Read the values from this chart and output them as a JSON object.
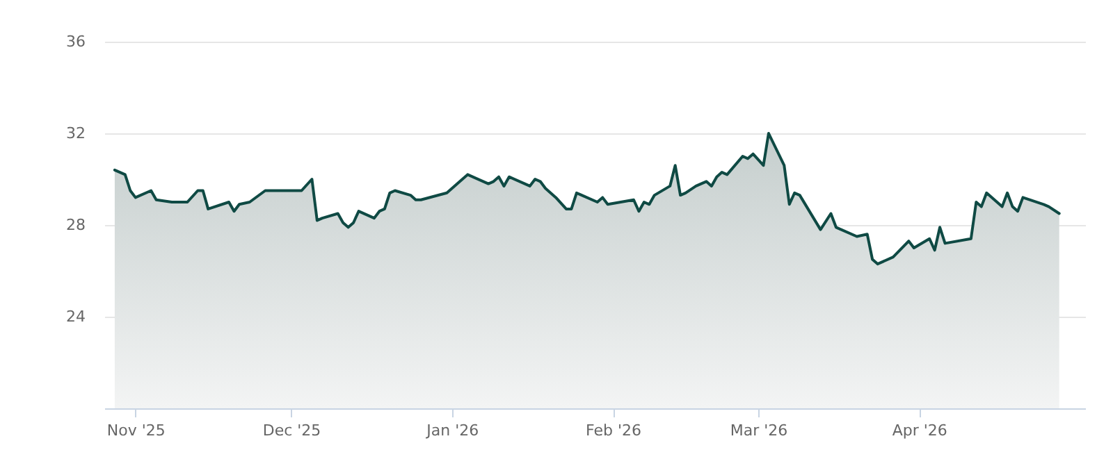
{
  "chart_data": {
    "type": "area",
    "x": [
      "2025-10-28",
      "2025-10-30",
      "2025-10-31",
      "2025-11-01",
      "2025-11-04",
      "2025-11-05",
      "2025-11-08",
      "2025-11-11",
      "2025-11-13",
      "2025-11-14",
      "2025-11-15",
      "2025-11-19",
      "2025-11-20",
      "2025-11-21",
      "2025-11-23",
      "2025-11-26",
      "2025-11-27",
      "2025-11-28",
      "2025-12-03",
      "2025-12-05",
      "2025-12-06",
      "2025-12-07",
      "2025-12-10",
      "2025-12-11",
      "2025-12-12",
      "2025-12-13",
      "2025-12-14",
      "2025-12-17",
      "2025-12-18",
      "2025-12-19",
      "2025-12-20",
      "2025-12-21",
      "2025-12-24",
      "2025-12-25",
      "2025-12-26",
      "2025-12-31",
      "2026-01-04",
      "2026-01-08",
      "2026-01-09",
      "2026-01-10",
      "2026-01-11",
      "2026-01-12",
      "2026-01-16",
      "2026-01-17",
      "2026-01-18",
      "2026-01-19",
      "2026-01-21",
      "2026-01-23",
      "2026-01-24",
      "2026-01-25",
      "2026-01-26",
      "2026-01-29",
      "2026-01-30",
      "2026-01-31",
      "2026-02-05",
      "2026-02-06",
      "2026-02-07",
      "2026-02-08",
      "2026-02-09",
      "2026-02-12",
      "2026-02-13",
      "2026-02-14",
      "2026-02-15",
      "2026-02-17",
      "2026-02-19",
      "2026-02-20",
      "2026-02-21",
      "2026-02-22",
      "2026-02-23",
      "2026-02-26",
      "2026-02-27",
      "2026-02-28",
      "2026-03-02",
      "2026-03-03",
      "2026-03-06",
      "2026-03-07",
      "2026-03-08",
      "2026-03-09",
      "2026-03-13",
      "2026-03-15",
      "2026-03-16",
      "2026-03-20",
      "2026-03-22",
      "2026-03-23",
      "2026-03-24",
      "2026-03-27",
      "2026-03-30",
      "2026-03-31",
      "2026-04-03",
      "2026-04-04",
      "2026-04-05",
      "2026-04-06",
      "2026-04-11",
      "2026-04-12",
      "2026-04-13",
      "2026-04-14",
      "2026-04-17",
      "2026-04-18",
      "2026-04-19",
      "2026-04-20",
      "2026-04-21",
      "2026-04-25",
      "2026-04-26",
      "2026-04-28"
    ],
    "values": [
      30.4,
      30.2,
      29.5,
      29.2,
      29.5,
      29.1,
      29.0,
      29.0,
      29.5,
      29.5,
      28.7,
      29.0,
      28.6,
      28.9,
      29.0,
      29.5,
      29.5,
      29.5,
      29.5,
      30.0,
      28.2,
      28.3,
      28.5,
      28.1,
      27.9,
      28.1,
      28.6,
      28.3,
      28.6,
      28.7,
      29.4,
      29.5,
      29.3,
      29.1,
      29.1,
      29.4,
      30.2,
      29.8,
      29.9,
      30.1,
      29.7,
      30.1,
      29.7,
      30.0,
      29.9,
      29.6,
      29.2,
      28.7,
      28.7,
      29.4,
      29.3,
      29.0,
      29.2,
      28.9,
      29.1,
      28.6,
      29.0,
      28.9,
      29.3,
      29.7,
      30.6,
      29.3,
      29.4,
      29.7,
      29.9,
      29.7,
      30.1,
      30.3,
      30.2,
      31.0,
      30.9,
      31.1,
      30.6,
      32.0,
      30.6,
      28.9,
      29.4,
      29.3,
      27.8,
      28.5,
      27.9,
      27.5,
      27.6,
      26.5,
      26.3,
      26.6,
      27.3,
      27.0,
      27.4,
      26.9,
      27.9,
      27.2,
      27.4,
      29.0,
      28.8,
      29.4,
      28.8,
      29.4,
      28.8,
      28.6,
      29.2,
      28.9,
      28.8,
      28.5
    ],
    "color": "#0f4a44",
    "xlim": [
      "2025-10-26",
      "2026-05-03"
    ],
    "xticks": [
      {
        "value": "2025-11-01",
        "label": "Nov '25"
      },
      {
        "value": "2025-12-01",
        "label": "Dec '25"
      },
      {
        "value": "2026-01-01",
        "label": "Jan '26"
      },
      {
        "value": "2026-02-01",
        "label": "Feb '26"
      },
      {
        "value": "2026-03-01",
        "label": "Mar '26"
      },
      {
        "value": "2026-04-01",
        "label": "Apr '26"
      }
    ],
    "ylim": [
      20,
      36
    ],
    "yticks": [
      24,
      28,
      32,
      36
    ],
    "grid": "y"
  }
}
